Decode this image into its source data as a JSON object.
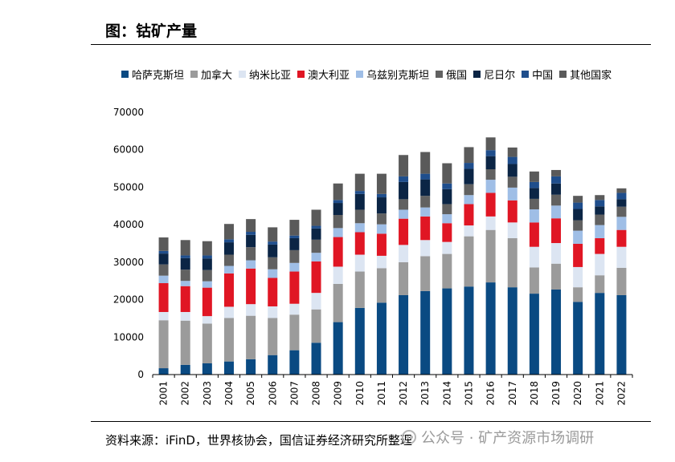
{
  "figure": {
    "title": "图：钴矿产量",
    "source": "资料来源：iFinD，世界核协会，国信证券经济研究所整理",
    "watermark": "公众号 · 矿产资源市场调研"
  },
  "chart_data": {
    "type": "bar",
    "stacked": true,
    "title": "钴矿产量",
    "xlabel": "",
    "ylabel": "",
    "ylim": [
      0,
      70000
    ],
    "yticks": [
      "0",
      "10000",
      "20000",
      "30000",
      "40000",
      "50000",
      "60000",
      "70000"
    ],
    "legend_position": "top",
    "grid": false,
    "categories": [
      "2001",
      "2002",
      "2003",
      "2004",
      "2005",
      "2006",
      "2007",
      "2008",
      "2009",
      "2010",
      "2011",
      "2012",
      "2013",
      "2014",
      "2015",
      "2016",
      "2017",
      "2018",
      "2019",
      "2020",
      "2021",
      "2022"
    ],
    "series": [
      {
        "name": "哈萨克斯坦",
        "color": "#0a4a82",
        "values": [
          1700,
          2600,
          3000,
          3500,
          4100,
          5200,
          6500,
          8500,
          14000,
          17800,
          19200,
          21200,
          22300,
          23000,
          23500,
          24600,
          23300,
          21600,
          22700,
          19400,
          21800,
          21200
        ]
      },
      {
        "name": "加拿大",
        "color": "#9b9b9b",
        "values": [
          12800,
          11800,
          10600,
          11600,
          11600,
          9900,
          9500,
          8900,
          10200,
          9700,
          9200,
          8800,
          9300,
          9200,
          13400,
          14000,
          13100,
          7000,
          6900,
          3900,
          4700,
          7300
        ]
      },
      {
        "name": "纳米比亚",
        "color": "#dce5f2",
        "values": [
          2200,
          2300,
          2000,
          3000,
          3100,
          3100,
          2900,
          4400,
          4600,
          4500,
          3300,
          4600,
          4300,
          3200,
          2900,
          3600,
          4200,
          5500,
          5500,
          5400,
          5700,
          5600
        ]
      },
      {
        "name": "澳大利亚",
        "color": "#e01624",
        "values": [
          7700,
          6900,
          7600,
          8900,
          9500,
          7600,
          8600,
          8400,
          7900,
          6000,
          5900,
          7000,
          6300,
          5000,
          5700,
          6300,
          5900,
          6500,
          6600,
          6200,
          4200,
          4500
        ]
      },
      {
        "name": "乌兹别克斯坦",
        "color": "#9fbee6",
        "values": [
          2000,
          1400,
          1700,
          2000,
          2200,
          2300,
          2300,
          2300,
          2400,
          2400,
          2500,
          2400,
          2400,
          2400,
          2400,
          3500,
          3400,
          3500,
          3400,
          3500,
          3500,
          3500
        ]
      },
      {
        "name": "俄国",
        "color": "#616161",
        "values": [
          3000,
          3000,
          3000,
          3000,
          3500,
          3200,
          3400,
          3500,
          3500,
          3600,
          2900,
          2800,
          3100,
          2700,
          2900,
          2800,
          2900,
          2800,
          2900,
          2800,
          2800,
          2700
        ]
      },
      {
        "name": "尼日尔",
        "color": "#0b2545",
        "values": [
          2900,
          3100,
          3100,
          3300,
          3300,
          3400,
          3200,
          3000,
          3200,
          4200,
          4300,
          4600,
          4400,
          4000,
          4100,
          3500,
          3400,
          2900,
          3000,
          3000,
          2200,
          2000
        ]
      },
      {
        "name": "中国",
        "color": "#1f4e8c",
        "values": [
          700,
          700,
          800,
          800,
          800,
          800,
          700,
          700,
          800,
          800,
          900,
          1500,
          1500,
          1500,
          1600,
          1600,
          1900,
          1600,
          1900,
          1700,
          1700,
          1700
        ]
      },
      {
        "name": "其他国家",
        "color": "#5a5a5a",
        "values": [
          3600,
          4100,
          3800,
          4100,
          3400,
          3800,
          4200,
          4300,
          4400,
          4600,
          5400,
          5700,
          5800,
          5400,
          4200,
          3400,
          2500,
          2800,
          1700,
          1800,
          1300,
          1200
        ]
      }
    ]
  }
}
